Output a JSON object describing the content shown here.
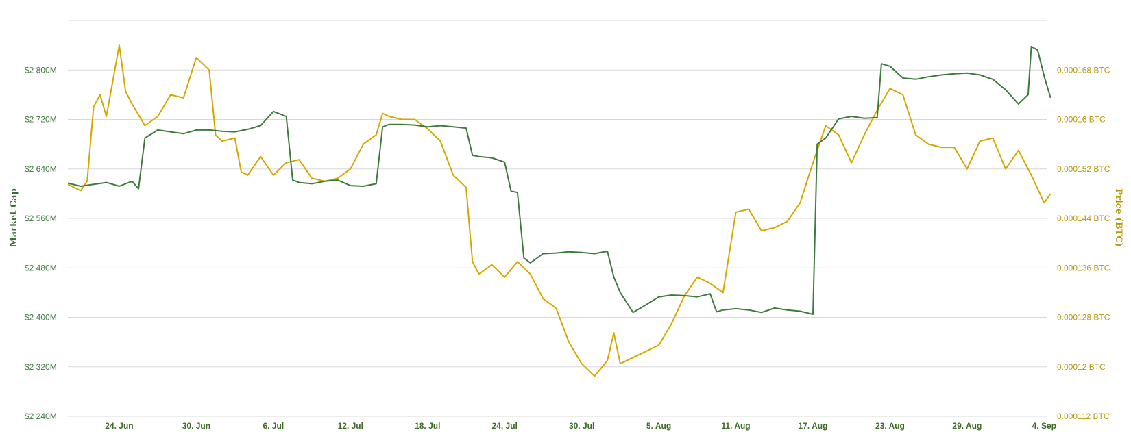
{
  "chart_data": {
    "type": "line",
    "title": "",
    "xlabel": "",
    "x_ticks": [
      "24. Jun",
      "30. Jun",
      "6. Jul",
      "12. Jul",
      "18. Jul",
      "24. Jul",
      "30. Jul",
      "5. Aug",
      "11. Aug",
      "17. Aug",
      "23. Aug",
      "29. Aug",
      "4. Sep"
    ],
    "xlim": [
      "2018-06-20",
      "2018-09-04"
    ],
    "y_left": {
      "label": "Market Cap",
      "ticks": [
        "$2 240M",
        "$2 320M",
        "$2 400M",
        "$2 480M",
        "$2 560M",
        "$2 640M",
        "$2 720M",
        "$2 800M"
      ],
      "ylim": [
        2240,
        2880
      ],
      "unit": "$M"
    },
    "y_right": {
      "label": "Price (BTC)",
      "ticks": [
        "0.000112 BTC",
        "0.00012 BTC",
        "0.000128 BTC",
        "0.000136 BTC",
        "0.000144 BTC",
        "0.000152 BTC",
        "0.00016 BTC",
        "0.000168 BTC"
      ],
      "ylim": [
        0.000112,
        0.000176
      ]
    },
    "grid": true,
    "colors": {
      "market_cap": "#3e7a3e",
      "price": "#d4a700"
    },
    "series": [
      {
        "key": "market_cap",
        "axis": "left",
        "points": [
          [
            "2018-06-20",
            2617
          ],
          [
            "2018-06-21",
            2612
          ],
          [
            "2018-06-22",
            2615
          ],
          [
            "2018-06-23",
            2618
          ],
          [
            "2018-06-24",
            2612
          ],
          [
            "2018-06-25",
            2620
          ],
          [
            "2018-06-25T12",
            2608
          ],
          [
            "2018-06-26",
            2690
          ],
          [
            "2018-06-27",
            2703
          ],
          [
            "2018-06-28",
            2700
          ],
          [
            "2018-06-29",
            2697
          ],
          [
            "2018-06-30",
            2703
          ],
          [
            "2018-07-01",
            2703
          ],
          [
            "2018-07-02",
            2701
          ],
          [
            "2018-07-03",
            2700
          ],
          [
            "2018-07-04",
            2704
          ],
          [
            "2018-07-05",
            2710
          ],
          [
            "2018-07-06",
            2733
          ],
          [
            "2018-07-07",
            2725
          ],
          [
            "2018-07-07T12",
            2622
          ],
          [
            "2018-07-08",
            2618
          ],
          [
            "2018-07-09",
            2616
          ],
          [
            "2018-07-10",
            2620
          ],
          [
            "2018-07-11",
            2622
          ],
          [
            "2018-07-12",
            2613
          ],
          [
            "2018-07-13",
            2612
          ],
          [
            "2018-07-14",
            2616
          ],
          [
            "2018-07-14T12",
            2708
          ],
          [
            "2018-07-15",
            2712
          ],
          [
            "2018-07-16",
            2712
          ],
          [
            "2018-07-17",
            2711
          ],
          [
            "2018-07-18",
            2708
          ],
          [
            "2018-07-19",
            2710
          ],
          [
            "2018-07-20",
            2708
          ],
          [
            "2018-07-21",
            2706
          ],
          [
            "2018-07-21T12",
            2662
          ],
          [
            "2018-07-22",
            2660
          ],
          [
            "2018-07-23",
            2658
          ],
          [
            "2018-07-24",
            2651
          ],
          [
            "2018-07-24T12",
            2604
          ],
          [
            "2018-07-25",
            2602
          ],
          [
            "2018-07-25T12",
            2496
          ],
          [
            "2018-07-26",
            2488
          ],
          [
            "2018-07-27",
            2503
          ],
          [
            "2018-07-28",
            2504
          ],
          [
            "2018-07-29",
            2506
          ],
          [
            "2018-07-30",
            2505
          ],
          [
            "2018-07-31",
            2503
          ],
          [
            "2018-08-01",
            2507
          ],
          [
            "2018-08-01T12",
            2465
          ],
          [
            "2018-08-02",
            2440
          ],
          [
            "2018-08-03",
            2408
          ],
          [
            "2018-08-04",
            2420
          ],
          [
            "2018-08-05",
            2433
          ],
          [
            "2018-08-06",
            2436
          ],
          [
            "2018-08-07",
            2435
          ],
          [
            "2018-08-08",
            2433
          ],
          [
            "2018-08-09",
            2438
          ],
          [
            "2018-08-09T12",
            2409
          ],
          [
            "2018-08-10",
            2412
          ],
          [
            "2018-08-11",
            2414
          ],
          [
            "2018-08-12",
            2412
          ],
          [
            "2018-08-13",
            2408
          ],
          [
            "2018-08-14",
            2415
          ],
          [
            "2018-08-15",
            2412
          ],
          [
            "2018-08-16",
            2410
          ],
          [
            "2018-08-17",
            2405
          ],
          [
            "2018-08-17T08",
            2680
          ],
          [
            "2018-08-18",
            2690
          ],
          [
            "2018-08-19",
            2721
          ],
          [
            "2018-08-20",
            2725
          ],
          [
            "2018-08-21",
            2722
          ],
          [
            "2018-08-22",
            2723
          ],
          [
            "2018-08-22T08",
            2810
          ],
          [
            "2018-08-23",
            2806
          ],
          [
            "2018-08-24",
            2787
          ],
          [
            "2018-08-25",
            2785
          ],
          [
            "2018-08-26",
            2789
          ],
          [
            "2018-08-27",
            2792
          ],
          [
            "2018-08-28",
            2794
          ],
          [
            "2018-08-29",
            2795
          ],
          [
            "2018-08-30",
            2792
          ],
          [
            "2018-08-31",
            2785
          ],
          [
            "2018-09-01",
            2768
          ],
          [
            "2018-09-02",
            2745
          ],
          [
            "2018-09-02T18",
            2760
          ],
          [
            "2018-09-03",
            2838
          ],
          [
            "2018-09-03T12",
            2832
          ],
          [
            "2018-09-04",
            2790
          ],
          [
            "2018-09-04T12",
            2755
          ]
        ]
      },
      {
        "key": "price",
        "axis": "right",
        "points": [
          [
            "2018-06-20",
            0.0001495
          ],
          [
            "2018-06-21",
            0.0001485
          ],
          [
            "2018-06-21T12",
            0.00015
          ],
          [
            "2018-06-22",
            0.000162
          ],
          [
            "2018-06-22T12",
            0.000164
          ],
          [
            "2018-06-23",
            0.0001605
          ],
          [
            "2018-06-24",
            0.000172
          ],
          [
            "2018-06-24T12",
            0.0001645
          ],
          [
            "2018-06-25",
            0.0001625
          ],
          [
            "2018-06-26",
            0.000159
          ],
          [
            "2018-06-27",
            0.0001605
          ],
          [
            "2018-06-28",
            0.000164
          ],
          [
            "2018-06-29",
            0.0001635
          ],
          [
            "2018-06-30",
            0.00017
          ],
          [
            "2018-07-01",
            0.000168
          ],
          [
            "2018-07-01T12",
            0.0001575
          ],
          [
            "2018-07-02",
            0.0001565
          ],
          [
            "2018-07-03",
            0.000157
          ],
          [
            "2018-07-03T12",
            0.0001515
          ],
          [
            "2018-07-04",
            0.000151
          ],
          [
            "2018-07-05",
            0.000154
          ],
          [
            "2018-07-06",
            0.000151
          ],
          [
            "2018-07-07",
            0.000153
          ],
          [
            "2018-07-08",
            0.0001535
          ],
          [
            "2018-07-09",
            0.0001505
          ],
          [
            "2018-07-10",
            0.00015
          ],
          [
            "2018-07-11",
            0.0001505
          ],
          [
            "2018-07-12",
            0.000152
          ],
          [
            "2018-07-13",
            0.000156
          ],
          [
            "2018-07-14",
            0.0001575
          ],
          [
            "2018-07-14T12",
            0.000161
          ],
          [
            "2018-07-15",
            0.0001605
          ],
          [
            "2018-07-16",
            0.00016
          ],
          [
            "2018-07-17",
            0.00016
          ],
          [
            "2018-07-18",
            0.0001585
          ],
          [
            "2018-07-19",
            0.0001565
          ],
          [
            "2018-07-20",
            0.000151
          ],
          [
            "2018-07-21",
            0.000149
          ],
          [
            "2018-07-21T12",
            0.000137
          ],
          [
            "2018-07-22",
            0.000135
          ],
          [
            "2018-07-23",
            0.0001365
          ],
          [
            "2018-07-24",
            0.0001345
          ],
          [
            "2018-07-25",
            0.000137
          ],
          [
            "2018-07-26",
            0.000135
          ],
          [
            "2018-07-27",
            0.000131
          ],
          [
            "2018-07-28",
            0.0001295
          ],
          [
            "2018-07-29",
            0.000124
          ],
          [
            "2018-07-30",
            0.0001205
          ],
          [
            "2018-07-31",
            0.0001185
          ],
          [
            "2018-08-01",
            0.000121
          ],
          [
            "2018-08-01T12",
            0.0001255
          ],
          [
            "2018-08-02",
            0.0001205
          ],
          [
            "2018-08-03",
            0.0001215
          ],
          [
            "2018-08-04",
            0.0001225
          ],
          [
            "2018-08-05",
            0.0001235
          ],
          [
            "2018-08-06",
            0.000127
          ],
          [
            "2018-08-07",
            0.0001315
          ],
          [
            "2018-08-08",
            0.0001345
          ],
          [
            "2018-08-09",
            0.0001335
          ],
          [
            "2018-08-10",
            0.000132
          ],
          [
            "2018-08-11",
            0.000145
          ],
          [
            "2018-08-12",
            0.0001455
          ],
          [
            "2018-08-13",
            0.000142
          ],
          [
            "2018-08-14",
            0.0001425
          ],
          [
            "2018-08-15",
            0.0001435
          ],
          [
            "2018-08-16",
            0.0001465
          ],
          [
            "2018-08-17",
            0.000153
          ],
          [
            "2018-08-18",
            0.000159
          ],
          [
            "2018-08-19",
            0.0001575
          ],
          [
            "2018-08-20",
            0.000153
          ],
          [
            "2018-08-21",
            0.0001575
          ],
          [
            "2018-08-22",
            0.0001615
          ],
          [
            "2018-08-23",
            0.000165
          ],
          [
            "2018-08-24",
            0.000164
          ],
          [
            "2018-08-25",
            0.0001575
          ],
          [
            "2018-08-26",
            0.000156
          ],
          [
            "2018-08-27",
            0.0001555
          ],
          [
            "2018-08-28",
            0.0001555
          ],
          [
            "2018-08-29",
            0.000152
          ],
          [
            "2018-08-30",
            0.0001565
          ],
          [
            "2018-08-31",
            0.000157
          ],
          [
            "2018-09-01",
            0.000152
          ],
          [
            "2018-09-02",
            0.000155
          ],
          [
            "2018-09-03",
            0.000151
          ],
          [
            "2018-09-04",
            0.0001465
          ],
          [
            "2018-09-04T12",
            0.000148
          ]
        ]
      }
    ]
  }
}
